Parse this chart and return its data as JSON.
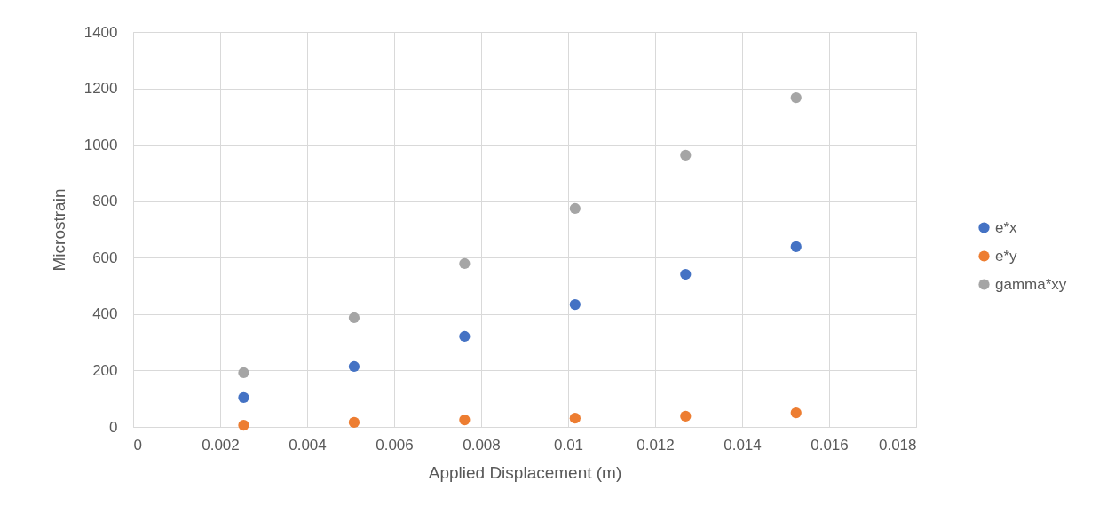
{
  "chart_data": {
    "type": "scatter",
    "xlabel": "Applied Displacement (m)",
    "ylabel": "Microstrain",
    "x": [
      0.00254,
      0.00508,
      0.00762,
      0.01016,
      0.0127,
      0.01524
    ],
    "series": [
      {
        "name": "e*x",
        "color": "#4472c4",
        "values": [
          104,
          214,
          321,
          434,
          541,
          639
        ]
      },
      {
        "name": "e*y",
        "color": "#ed7d31",
        "values": [
          6,
          16,
          25,
          31,
          38,
          50
        ]
      },
      {
        "name": "gamma*xy",
        "color": "#a5a5a5",
        "values": [
          192,
          387,
          579,
          774,
          963,
          1167
        ]
      }
    ],
    "xlim": [
      0,
      0.018
    ],
    "xticks": [
      0,
      0.002,
      0.004,
      0.006,
      0.008,
      0.01,
      0.012,
      0.014,
      0.016,
      0.018
    ],
    "ylim": [
      0,
      1400
    ],
    "yticks": [
      0,
      200,
      400,
      600,
      800,
      1000,
      1200,
      1400
    ],
    "grid": true,
    "legend": "right",
    "marker": "circle"
  }
}
